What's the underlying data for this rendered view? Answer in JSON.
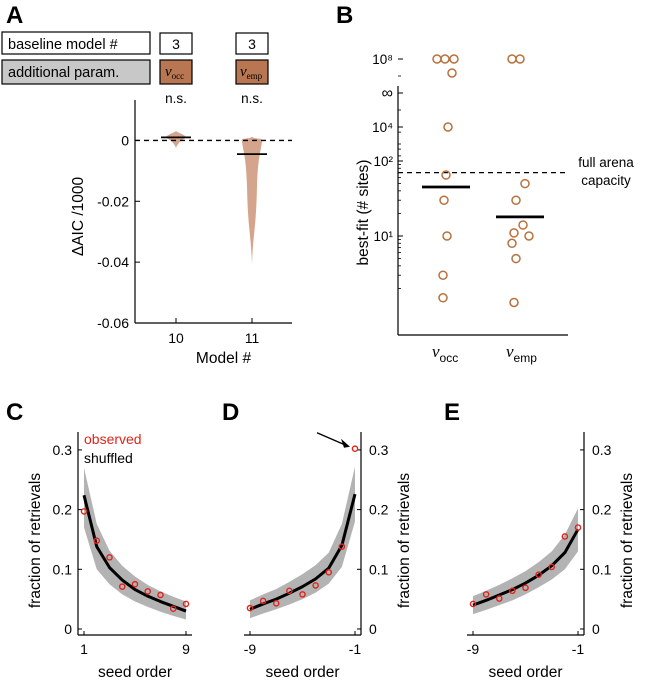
{
  "panel_letters": [
    "A",
    "B",
    "C",
    "D",
    "E"
  ],
  "colors": {
    "violin": "#d4a58c",
    "param_box": "#b97652",
    "gray_box": "#c8c8c8",
    "marker_orange": "#b8713c",
    "observed_red": "#e0241a",
    "band_gray": "#b3b3b3",
    "line_black": "#000000"
  },
  "panel_a": {
    "row1_label": "baseline model #",
    "row2_label": "additional param.",
    "baseline_models": [
      "3",
      "3"
    ],
    "params": [
      {
        "sym": "ν",
        "sub": "occ"
      },
      {
        "sym": "ν",
        "sub": "emp"
      }
    ],
    "significance": [
      "n.s.",
      "n.s."
    ]
  },
  "chart_data": [
    {
      "id": "A",
      "type": "violin",
      "title": "",
      "xlabel": "Model #",
      "ylabel": "ΔAIC /1000",
      "ylim": [
        -0.06,
        0.01
      ],
      "yticks": [
        0,
        -0.02,
        -0.04,
        -0.06
      ],
      "ytick_labels": [
        "0",
        "-0.02",
        "-0.04",
        "-0.06"
      ],
      "categories": [
        "10",
        "11"
      ],
      "medians": [
        0.001,
        -0.0045
      ],
      "ranges": [
        [
          -0.0025,
          0.003
        ],
        [
          -0.041,
          0.0012
        ]
      ],
      "reference_line": 0
    },
    {
      "id": "B",
      "type": "scatter",
      "yscale": "log",
      "ylabel": "best-fit (# sites)",
      "ytick_labels": [
        "∞",
        "10⁸",
        "10⁴",
        "10²",
        "10¹"
      ],
      "categories": [
        "ν_occ",
        "ν_emp"
      ],
      "category_labels": [
        {
          "sym": "ν",
          "sub": "occ"
        },
        {
          "sym": "ν",
          "sub": "emp"
        }
      ],
      "points": [
        {
          "category": "ν_occ",
          "values": [
            100000000,
            100000000,
            50000000,
            100000000,
            10000,
            65,
            30,
            10,
            3,
            1.5
          ]
        },
        {
          "category": "ν_emp",
          "values": [
            100000000,
            100000000,
            50,
            30,
            14,
            11,
            10,
            8,
            5,
            1.3
          ]
        }
      ],
      "medians": [
        45,
        18
      ],
      "reference_line": {
        "value": 70,
        "label_lines": [
          "full arena",
          "capacity"
        ]
      }
    },
    {
      "id": "C",
      "type": "line",
      "xlabel": "seed order",
      "ylabel": "fraction of retrievals",
      "xlim": [
        1,
        9
      ],
      "ylim": [
        0,
        0.33
      ],
      "xticks": [
        1,
        9
      ],
      "yticks": [
        0,
        0.1,
        0.2,
        0.3
      ],
      "legend": [
        {
          "name": "observed",
          "color": "#e0241a"
        },
        {
          "name": "shuffled",
          "color": "#000000"
        }
      ],
      "series": [
        {
          "name": "shuffled",
          "x": [
            1,
            2,
            3,
            4,
            5,
            6,
            7,
            8,
            9
          ],
          "values": [
            0.224,
            0.138,
            0.103,
            0.082,
            0.066,
            0.055,
            0.046,
            0.038,
            0.03
          ],
          "band_low": [
            0.17,
            0.1,
            0.075,
            0.058,
            0.046,
            0.037,
            0.029,
            0.022,
            0.016
          ],
          "band_high": [
            0.27,
            0.176,
            0.131,
            0.106,
            0.088,
            0.074,
            0.063,
            0.054,
            0.046
          ]
        },
        {
          "name": "observed",
          "x": [
            1,
            2,
            3,
            4,
            5,
            6,
            7,
            8,
            9
          ],
          "values": [
            0.197,
            0.148,
            0.12,
            0.071,
            0.075,
            0.063,
            0.057,
            0.034,
            0.042
          ]
        }
      ]
    },
    {
      "id": "D",
      "type": "line",
      "xlabel": "seed order",
      "ylabel": "fraction of retrievals",
      "xlim": [
        -9,
        -1
      ],
      "ylim": [
        0,
        0.33
      ],
      "xticks": [
        -9,
        -1
      ],
      "yticks": [
        0,
        0.1,
        0.2,
        0.3
      ],
      "annotation": "arrow pointing to -1 observed point",
      "series": [
        {
          "name": "shuffled",
          "x": [
            -9,
            -8,
            -7,
            -6,
            -5,
            -4,
            -3,
            -2,
            -1
          ],
          "values": [
            0.033,
            0.042,
            0.05,
            0.06,
            0.071,
            0.084,
            0.102,
            0.14,
            0.226
          ],
          "band_low": [
            0.018,
            0.026,
            0.033,
            0.041,
            0.05,
            0.061,
            0.076,
            0.104,
            0.18
          ],
          "band_high": [
            0.048,
            0.058,
            0.067,
            0.079,
            0.092,
            0.107,
            0.128,
            0.176,
            0.272
          ]
        },
        {
          "name": "observed",
          "x": [
            -9,
            -8,
            -7,
            -6,
            -5,
            -4,
            -3,
            -2,
            -1
          ],
          "values": [
            0.035,
            0.047,
            0.043,
            0.064,
            0.058,
            0.073,
            0.095,
            0.138,
            0.302
          ]
        }
      ]
    },
    {
      "id": "E",
      "type": "line",
      "xlabel": "seed order",
      "ylabel": "fraction of retrievals",
      "xlim": [
        -9,
        -1
      ],
      "ylim": [
        0,
        0.33
      ],
      "xticks": [
        -9,
        -1
      ],
      "yticks": [
        0,
        0.1,
        0.2,
        0.3
      ],
      "series": [
        {
          "name": "shuffled",
          "x": [
            -9,
            -8,
            -7,
            -6,
            -5,
            -4,
            -3,
            -2,
            -1
          ],
          "values": [
            0.04,
            0.048,
            0.057,
            0.066,
            0.077,
            0.09,
            0.106,
            0.128,
            0.167
          ],
          "band_low": [
            0.025,
            0.032,
            0.04,
            0.048,
            0.058,
            0.07,
            0.083,
            0.1,
            0.13
          ],
          "band_high": [
            0.055,
            0.064,
            0.074,
            0.085,
            0.097,
            0.112,
            0.13,
            0.158,
            0.202
          ]
        },
        {
          "name": "observed",
          "x": [
            -9,
            -8,
            -7,
            -6,
            -5,
            -4,
            -3,
            -2,
            -1
          ],
          "values": [
            0.042,
            0.058,
            0.051,
            0.064,
            0.069,
            0.091,
            0.104,
            0.155,
            0.17
          ]
        }
      ]
    }
  ]
}
